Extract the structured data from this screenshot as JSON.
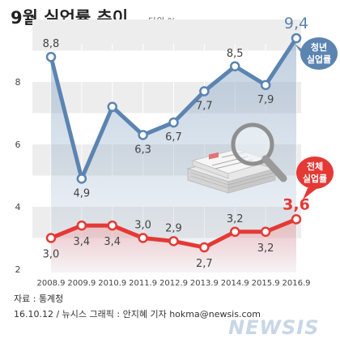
{
  "title": "9월 실업률 추이",
  "unit": "단위:%",
  "chart_data": {
    "type": "line",
    "categories": [
      "2008.9",
      "2009.9",
      "2010.9",
      "2011.9",
      "2012.9",
      "2013.9",
      "2014.9",
      "2015.9",
      "2016.9"
    ],
    "series": [
      {
        "name": "청년 실업률",
        "color": "#5b84b1",
        "values": [
          8.8,
          4.9,
          7.2,
          6.3,
          6.7,
          7.7,
          8.5,
          7.9,
          9.4
        ],
        "labels": [
          "8,8",
          "4,9",
          "",
          "6,3",
          "6,7",
          "7,7",
          "8,5",
          "7,9",
          "9,4"
        ]
      },
      {
        "name": "전체 실업률",
        "color": "#e53935",
        "values": [
          3.0,
          3.4,
          3.4,
          3.0,
          2.9,
          2.7,
          3.2,
          3.2,
          3.6
        ],
        "labels": [
          "3,0",
          "3,4",
          "3,4",
          "3,0",
          "2,9",
          "2,7",
          "3,2",
          "3,2",
          "3,6"
        ]
      }
    ],
    "yticks": [
      2,
      4,
      6,
      8
    ],
    "ylim": [
      2,
      10
    ],
    "grid": "horizontal bands"
  },
  "legend": {
    "youth_line1": "청년",
    "youth_line2": "실업률",
    "total_line1": "전체",
    "total_line2": "실업률"
  },
  "source": {
    "line1": "자료 : 통계청",
    "line2": "16.10.12 / 뉴시스 그래픽 : 안지혜 기자 hokma@newsis.com"
  },
  "watermark": "NEWSIS"
}
